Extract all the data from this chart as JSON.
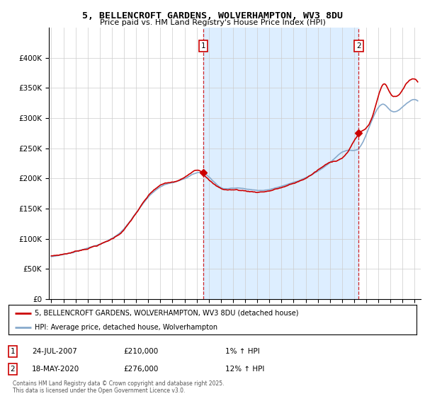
{
  "title": "5, BELLENCROFT GARDENS, WOLVERHAMPTON, WV3 8DU",
  "subtitle": "Price paid vs. HM Land Registry's House Price Index (HPI)",
  "ylim": [
    0,
    450000
  ],
  "yticks": [
    0,
    50000,
    100000,
    150000,
    200000,
    250000,
    300000,
    350000,
    400000
  ],
  "xlim_start": 1994.8,
  "xlim_end": 2025.5,
  "background_color": "#ffffff",
  "plot_bg_color": "#ffffff",
  "grid_color": "#cccccc",
  "shade_color": "#ddeeff",
  "purchase1_x": 2007.55,
  "purchase1_y": 210000,
  "purchase1_label": "1",
  "purchase2_x": 2020.38,
  "purchase2_y": 276000,
  "purchase2_label": "2",
  "sale_line_color": "#cc0000",
  "hpi_line_color": "#88aacc",
  "vline_color": "#cc0000",
  "legend_sale_label": "5, BELLENCROFT GARDENS, WOLVERHAMPTON, WV3 8DU (detached house)",
  "legend_hpi_label": "HPI: Average price, detached house, Wolverhampton",
  "annotation1_date": "24-JUL-2007",
  "annotation1_price": "£210,000",
  "annotation1_hpi": "1% ↑ HPI",
  "annotation2_date": "18-MAY-2020",
  "annotation2_price": "£276,000",
  "annotation2_hpi": "12% ↑ HPI",
  "footer": "Contains HM Land Registry data © Crown copyright and database right 2025.\nThis data is licensed under the Open Government Licence v3.0."
}
